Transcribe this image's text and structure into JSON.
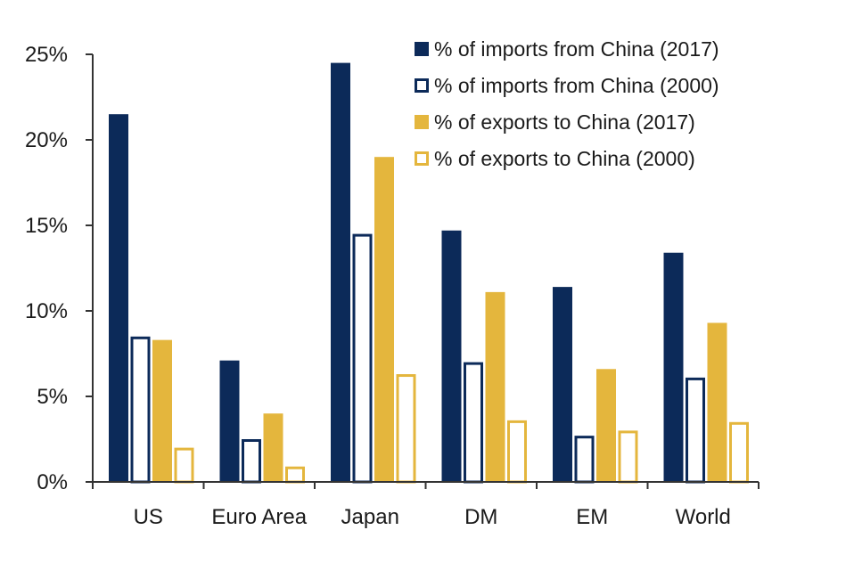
{
  "chart_data": {
    "type": "bar",
    "title": "",
    "xlabel": "",
    "ylabel": "",
    "ylim": [
      0,
      25
    ],
    "yticks": [
      0,
      5,
      10,
      15,
      20,
      25
    ],
    "ytick_labels": [
      "0%",
      "5%",
      "10%",
      "15%",
      "20%",
      "25%"
    ],
    "grid": false,
    "legend_position": "top-right",
    "categories": [
      "US",
      "Euro Area",
      "Japan",
      "DM",
      "EM",
      "World"
    ],
    "series": [
      {
        "name": "% of imports from China (2017)",
        "style": "filled",
        "color": "#0c2a59",
        "values": [
          21.5,
          7.1,
          24.5,
          14.7,
          11.4,
          13.4
        ]
      },
      {
        "name": "% of imports from China (2000)",
        "style": "outline",
        "color": "#0c2a59",
        "values": [
          8.5,
          2.5,
          14.5,
          7.0,
          2.7,
          6.1
        ]
      },
      {
        "name": "% of exports to China (2017)",
        "style": "filled",
        "color": "#e4b63d",
        "values": [
          8.3,
          4.0,
          19.0,
          11.1,
          6.6,
          9.3
        ]
      },
      {
        "name": "% of exports to China (2000)",
        "style": "outline",
        "color": "#e4b63d",
        "values": [
          2.0,
          0.9,
          6.3,
          3.6,
          3.0,
          3.5
        ]
      }
    ]
  }
}
